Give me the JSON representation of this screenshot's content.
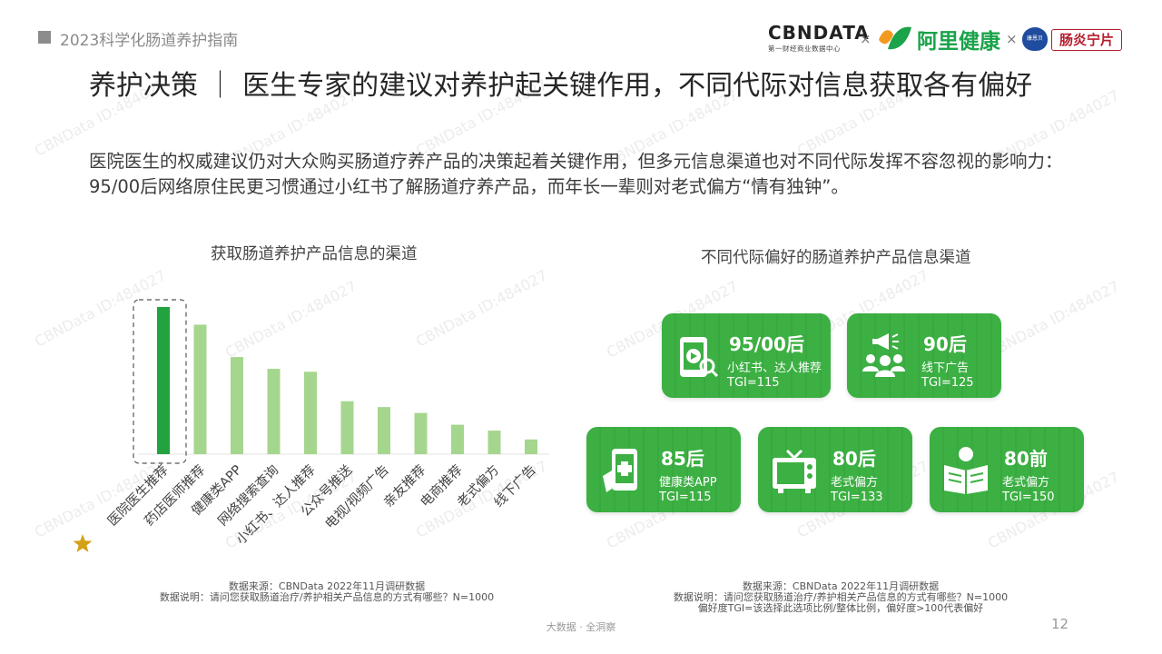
{
  "header": {
    "report_title": "2023科学化肠道养护指南",
    "logos": {
      "cbn_main": "CBNDATA",
      "cbn_sub": "第一财经商业数据中心",
      "sep": "×",
      "ali": "阿里健康",
      "badge": "康恩贝",
      "product": "肠炎宁片"
    }
  },
  "headline": "养护决策 ｜ 医生专家的建议对养护起关键作用，不同代际对信息获取各有偏好",
  "subline": "医院医生的权威建议仍对大众购买肠道疗养产品的决策起着关键作用，但多元信息渠道也对不同代际发挥不容忽视的影响力：95/00后网络原住民更习惯通过小红书了解肠道疗养产品，而年长一辈则对老式偏方“情有独钟”。",
  "chart_data": [
    {
      "type": "bar",
      "title": "获取肠道养护产品信息的渠道",
      "categories": [
        "医院医生推荐",
        "药店医师推荐",
        "健康类APP",
        "网络搜索查询",
        "小红书、达人推荐",
        "公众号推送",
        "电视/视频广告",
        "亲友推荐",
        "电商推荐",
        "老式偏方",
        "线下广告"
      ],
      "values": [
        100,
        88,
        66,
        58,
        56,
        36,
        32,
        28,
        20,
        16,
        10
      ],
      "highlight_index": 0,
      "colors": {
        "highlight": "#22a33f",
        "normal": "#a5d68d"
      },
      "ylim": [
        0,
        100
      ],
      "grid": false,
      "legend": "none"
    },
    {
      "type": "table",
      "title": "不同代际偏好的肠道养护产品信息渠道",
      "cards": [
        {
          "generation": "95/00后",
          "channel": "小红书、达人推荐",
          "tgi": "TGI=115",
          "icon": "video-phone-icon"
        },
        {
          "generation": "90后",
          "channel": "线下广告",
          "tgi": "TGI=125",
          "icon": "megaphone-crowd-icon"
        },
        {
          "generation": "85后",
          "channel": "健康类APP",
          "tgi": "TGI=115",
          "icon": "health-app-phone-icon"
        },
        {
          "generation": "80后",
          "channel": "老式偏方",
          "tgi": "TGI=133",
          "icon": "television-icon"
        },
        {
          "generation": "80前",
          "channel": "老式偏方",
          "tgi": "TGI=150",
          "icon": "newspaper-reader-icon"
        }
      ]
    }
  ],
  "notes": {
    "left": {
      "source": "数据来源：CBNData 2022年11月调研数据",
      "desc": "数据说明：请问您获取肠道治疗/养护相关产品信息的方式有哪些？N=1000"
    },
    "right": {
      "source": "数据来源：CBNData 2022年11月调研数据",
      "desc": "数据说明：请问您获取肠道治疗/养护相关产品信息的方式有哪些？N=1000",
      "tgi": "偏好度TGI=该选择此选项比例/整体比例，偏好度>100代表偏好"
    }
  },
  "footer": {
    "slogan": "大数据 · 全洞察",
    "page": "12"
  },
  "watermark": "CBNData ID:484027",
  "colors": {
    "card_green": "#3cb043",
    "star": "#d4a017"
  }
}
